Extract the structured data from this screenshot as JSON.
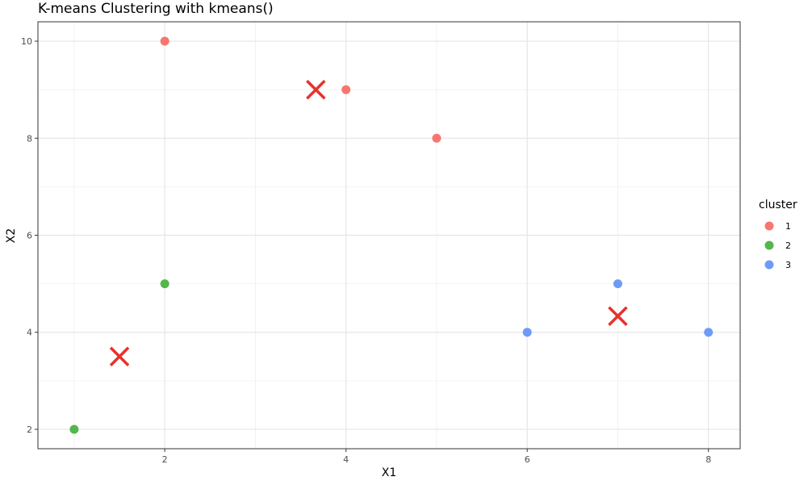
{
  "chart_data": {
    "type": "scatter",
    "title": "K-means Clustering with kmeans()",
    "xlabel": "X1",
    "ylabel": "X2",
    "xlim": [
      0.6,
      8.35
    ],
    "ylim": [
      1.6,
      10.4
    ],
    "x_ticks": [
      2,
      4,
      6,
      8
    ],
    "x_tick_labels": [
      "2",
      "4",
      "6",
      "8"
    ],
    "y_ticks": [
      2,
      4,
      6,
      8,
      10
    ],
    "y_tick_labels": [
      "2",
      "4",
      "6",
      "8",
      "10"
    ],
    "grid": true,
    "legend": {
      "title": "cluster",
      "position": "right",
      "entries": [
        {
          "label": "1",
          "color": "#F8766D"
        },
        {
          "label": "2",
          "color": "#53B74C"
        },
        {
          "label": "3",
          "color": "#6E9BF8"
        }
      ]
    },
    "series": [
      {
        "cluster": "1",
        "color": "#F8766D",
        "points": [
          [
            2,
            10
          ],
          [
            4,
            9
          ],
          [
            5,
            8
          ]
        ]
      },
      {
        "cluster": "2",
        "color": "#53B74C",
        "points": [
          [
            2,
            5
          ],
          [
            1,
            2
          ]
        ]
      },
      {
        "cluster": "3",
        "color": "#6E9BF8",
        "points": [
          [
            7,
            5
          ],
          [
            6,
            4
          ],
          [
            8,
            4
          ]
        ]
      }
    ],
    "centroids": {
      "marker": "x",
      "color": "#E8312A",
      "points": [
        [
          3.667,
          9
        ],
        [
          1.5,
          3.5
        ],
        [
          7,
          4.333
        ]
      ]
    }
  }
}
